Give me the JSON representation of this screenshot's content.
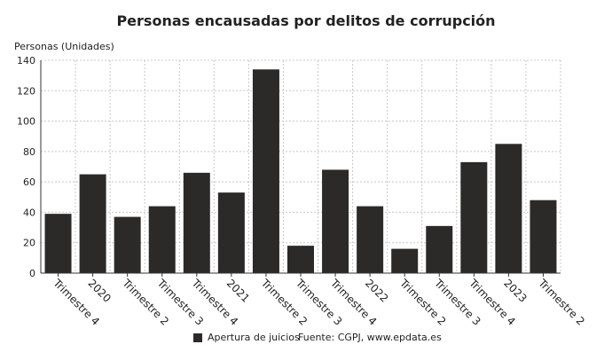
{
  "chart_data": {
    "type": "bar",
    "title": "Personas encausadas por delitos de corrupción",
    "ylabel": "Personas (Unidades)",
    "xlabel": "",
    "categories": [
      "Trimestre 4",
      "2020",
      "Trimestre 2",
      "Trimestre 3",
      "Trimestre 4",
      "2021",
      "Trimestre 2",
      "Trimestre 3",
      "Trimestre 4",
      "2022",
      "Trimestre 2",
      "Trimestre 3",
      "Trimestre 4",
      "2023",
      "Trimestre 2"
    ],
    "series": [
      {
        "name": "Apertura de juicios",
        "values": [
          39,
          65,
          37,
          44,
          66,
          53,
          134,
          18,
          68,
          44,
          16,
          31,
          73,
          85,
          48
        ]
      }
    ],
    "ylim": [
      0,
      140
    ],
    "yticks": [
      0,
      20,
      40,
      60,
      80,
      100,
      120,
      140
    ],
    "grid": true,
    "legend_position": "bottom",
    "bar_color": "#2b2a29"
  },
  "source": "Fuente: CGPJ, www.epdata.es"
}
